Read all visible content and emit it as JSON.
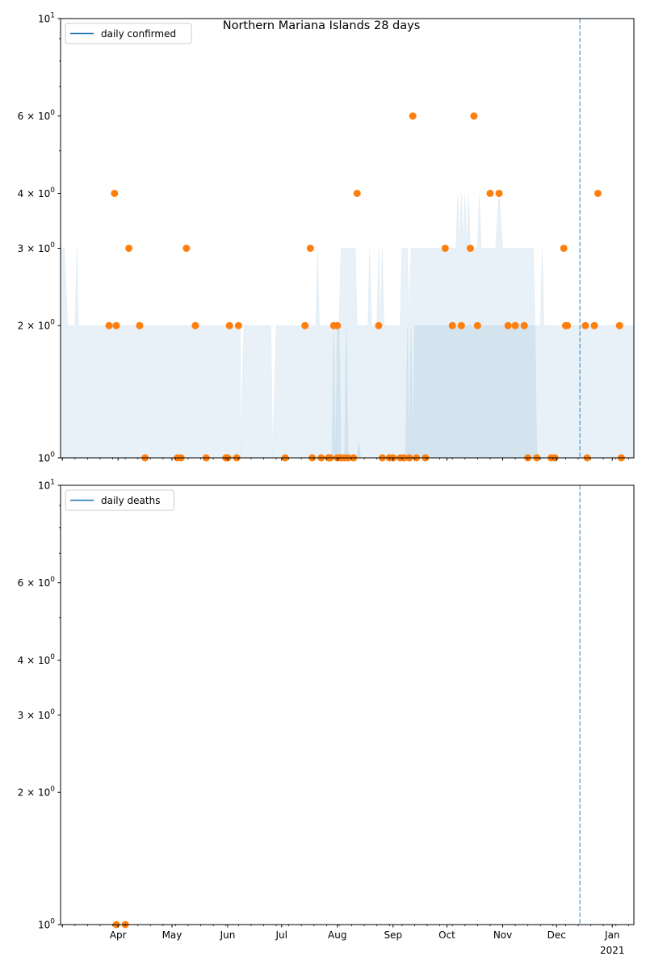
{
  "chart_data": [
    {
      "type": "scatter",
      "title": "Northern Mariana Islands 28 days",
      "yscale": "log",
      "ylim": [
        1,
        10
      ],
      "xlim": [
        "2020-02-29",
        "2021-01-13"
      ],
      "grid": false,
      "legend_position": "top-left",
      "y_tick_labels": [
        {
          "value": 1,
          "mant": "10",
          "exp": "0"
        },
        {
          "value": 2,
          "mant": "2 × 10",
          "exp": "0"
        },
        {
          "value": 3,
          "mant": "3 × 10",
          "exp": "0"
        },
        {
          "value": 4,
          "mant": "4 × 10",
          "exp": "0"
        },
        {
          "value": 6,
          "mant": "6 × 10",
          "exp": "0"
        },
        {
          "value": 10,
          "mant": "10",
          "exp": "1"
        }
      ],
      "vline_date": "2020-12-14",
      "series": [
        {
          "name": "daily confirmed",
          "type": "line",
          "color": "#1f77b4",
          "values": []
        },
        {
          "type": "scatter",
          "color": "#ff7f0e",
          "points": [
            [
              "2020-03-27",
              2
            ],
            [
              "2020-03-30",
              4
            ],
            [
              "2020-03-31",
              2
            ],
            [
              "2020-04-07",
              3
            ],
            [
              "2020-04-13",
              2
            ],
            [
              "2020-04-16",
              1
            ],
            [
              "2020-05-04",
              1
            ],
            [
              "2020-05-06",
              1
            ],
            [
              "2020-05-09",
              3
            ],
            [
              "2020-05-14",
              2
            ],
            [
              "2020-05-20",
              1
            ],
            [
              "2020-05-31",
              1
            ],
            [
              "2020-06-01",
              1
            ],
            [
              "2020-06-02",
              2
            ],
            [
              "2020-06-06",
              1
            ],
            [
              "2020-06-07",
              2
            ],
            [
              "2020-07-03",
              1
            ],
            [
              "2020-07-14",
              2
            ],
            [
              "2020-07-17",
              3
            ],
            [
              "2020-07-18",
              1
            ],
            [
              "2020-07-23",
              1
            ],
            [
              "2020-07-27",
              1
            ],
            [
              "2020-07-28",
              1
            ],
            [
              "2020-07-30",
              2
            ],
            [
              "2020-08-01",
              2
            ],
            [
              "2020-08-01",
              1
            ],
            [
              "2020-08-03",
              1
            ],
            [
              "2020-08-05",
              1
            ],
            [
              "2020-08-07",
              1
            ],
            [
              "2020-08-10",
              1
            ],
            [
              "2020-08-12",
              4
            ],
            [
              "2020-08-24",
              2
            ],
            [
              "2020-08-26",
              1
            ],
            [
              "2020-08-30",
              1
            ],
            [
              "2020-09-01",
              1
            ],
            [
              "2020-09-05",
              1
            ],
            [
              "2020-09-07",
              1
            ],
            [
              "2020-09-10",
              1
            ],
            [
              "2020-09-12",
              6
            ],
            [
              "2020-09-14",
              1
            ],
            [
              "2020-09-19",
              1
            ],
            [
              "2020-09-30",
              3
            ],
            [
              "2020-10-04",
              2
            ],
            [
              "2020-10-09",
              2
            ],
            [
              "2020-10-14",
              3
            ],
            [
              "2020-10-16",
              6
            ],
            [
              "2020-10-18",
              2
            ],
            [
              "2020-10-25",
              4
            ],
            [
              "2020-10-30",
              4
            ],
            [
              "2020-11-04",
              2
            ],
            [
              "2020-11-08",
              2
            ],
            [
              "2020-11-13",
              2
            ],
            [
              "2020-11-15",
              1
            ],
            [
              "2020-11-20",
              1
            ],
            [
              "2020-11-28",
              1
            ],
            [
              "2020-11-30",
              1
            ],
            [
              "2020-12-05",
              3
            ],
            [
              "2020-12-06",
              2
            ],
            [
              "2020-12-07",
              2
            ],
            [
              "2020-12-17",
              2
            ],
            [
              "2020-12-18",
              1
            ],
            [
              "2020-12-22",
              2
            ],
            [
              "2020-12-24",
              4
            ],
            [
              "2021-01-05",
              2
            ],
            [
              "2021-01-06",
              1
            ]
          ]
        }
      ],
      "band_outer": [
        [
          "2020-02-29",
          3
        ],
        [
          "2020-03-02",
          3
        ],
        [
          "2020-03-04",
          2
        ],
        [
          "2020-03-08",
          2
        ],
        [
          "2020-03-09",
          3
        ],
        [
          "2020-03-10",
          2
        ],
        [
          "2020-06-08",
          2
        ],
        [
          "2020-06-08",
          1
        ],
        [
          "2020-06-10",
          2
        ],
        [
          "2020-06-25",
          2
        ],
        [
          "2020-06-26",
          1
        ],
        [
          "2020-06-28",
          2
        ],
        [
          "2020-07-20",
          2
        ],
        [
          "2020-07-21",
          3
        ],
        [
          "2020-07-22",
          2
        ],
        [
          "2020-08-02",
          2
        ],
        [
          "2020-08-03",
          3
        ],
        [
          "2020-08-11",
          3
        ],
        [
          "2020-08-12",
          2
        ],
        [
          "2020-08-18",
          2
        ],
        [
          "2020-08-19",
          3
        ],
        [
          "2020-08-20",
          2
        ],
        [
          "2020-08-23",
          2
        ],
        [
          "2020-08-24",
          3
        ],
        [
          "2020-08-25",
          2
        ],
        [
          "2020-08-26",
          3
        ],
        [
          "2020-08-27",
          2
        ],
        [
          "2020-09-05",
          2
        ],
        [
          "2020-09-06",
          3
        ],
        [
          "2020-09-09",
          3
        ],
        [
          "2020-09-10",
          2
        ],
        [
          "2020-09-11",
          3
        ],
        [
          "2020-10-06",
          3
        ],
        [
          "2020-10-07",
          4
        ],
        [
          "2020-10-08",
          3
        ],
        [
          "2020-10-09",
          4
        ],
        [
          "2020-10-10",
          3
        ],
        [
          "2020-10-11",
          4
        ],
        [
          "2020-10-12",
          3
        ],
        [
          "2020-10-13",
          4
        ],
        [
          "2020-10-14",
          3
        ],
        [
          "2020-10-18",
          3
        ],
        [
          "2020-10-19",
          4
        ],
        [
          "2020-10-20",
          3
        ],
        [
          "2020-10-28",
          3
        ],
        [
          "2020-10-30",
          4
        ],
        [
          "2020-11-01",
          3
        ],
        [
          "2020-11-18",
          3
        ],
        [
          "2020-11-19",
          2
        ],
        [
          "2020-11-22",
          2
        ],
        [
          "2020-11-23",
          3
        ],
        [
          "2020-11-24",
          2
        ],
        [
          "2021-01-13",
          2
        ]
      ],
      "band_inner": [
        [
          "2020-07-29",
          1
        ],
        [
          "2020-07-30",
          2
        ],
        [
          "2020-07-31",
          1
        ],
        [
          "2020-08-01",
          2
        ],
        [
          "2020-08-02",
          2
        ],
        [
          "2020-08-03",
          1
        ],
        [
          "2020-08-05",
          1
        ],
        [
          "2020-08-06",
          2
        ],
        [
          "2020-08-07",
          1
        ],
        [
          "2020-08-12",
          1
        ],
        [
          "2020-08-13",
          1.08
        ],
        [
          "2020-08-14",
          1
        ],
        [
          "2020-09-08",
          1
        ],
        [
          "2020-09-09",
          2
        ],
        [
          "2020-09-10",
          1
        ],
        [
          "2020-09-11",
          2
        ],
        [
          "2020-09-12",
          1
        ],
        [
          "2020-09-13",
          2
        ],
        [
          "2020-11-19",
          2
        ],
        [
          "2020-11-20",
          1
        ]
      ]
    },
    {
      "type": "scatter",
      "title": "",
      "yscale": "log",
      "ylim": [
        1,
        10
      ],
      "xlim": [
        "2020-02-29",
        "2021-01-13"
      ],
      "grid": false,
      "legend_position": "top-left",
      "y_tick_labels": [
        {
          "value": 1,
          "mant": "10",
          "exp": "0"
        },
        {
          "value": 2,
          "mant": "2 × 10",
          "exp": "0"
        },
        {
          "value": 3,
          "mant": "3 × 10",
          "exp": "0"
        },
        {
          "value": 4,
          "mant": "4 × 10",
          "exp": "0"
        },
        {
          "value": 6,
          "mant": "6 × 10",
          "exp": "0"
        },
        {
          "value": 10,
          "mant": "10",
          "exp": "1"
        }
      ],
      "vline_date": "2020-12-14",
      "x_tick_labels": [
        {
          "date": "2020-04-01",
          "label": "Apr",
          "sub": ""
        },
        {
          "date": "2020-05-01",
          "label": "May",
          "sub": ""
        },
        {
          "date": "2020-06-01",
          "label": "Jun",
          "sub": ""
        },
        {
          "date": "2020-07-01",
          "label": "Jul",
          "sub": ""
        },
        {
          "date": "2020-08-01",
          "label": "Aug",
          "sub": ""
        },
        {
          "date": "2020-09-01",
          "label": "Sep",
          "sub": ""
        },
        {
          "date": "2020-10-01",
          "label": "Oct",
          "sub": ""
        },
        {
          "date": "2020-11-01",
          "label": "Nov",
          "sub": ""
        },
        {
          "date": "2020-12-01",
          "label": "Dec",
          "sub": ""
        },
        {
          "date": "2021-01-01",
          "label": "Jan",
          "sub": "2021"
        }
      ],
      "series": [
        {
          "name": "daily deaths",
          "type": "line",
          "color": "#1f77b4",
          "values": []
        },
        {
          "type": "scatter",
          "color": "#ff7f0e",
          "points": [
            [
              "2020-03-31",
              1
            ],
            [
              "2020-04-05",
              1
            ]
          ]
        }
      ],
      "band_outer": [],
      "band_inner": []
    }
  ]
}
